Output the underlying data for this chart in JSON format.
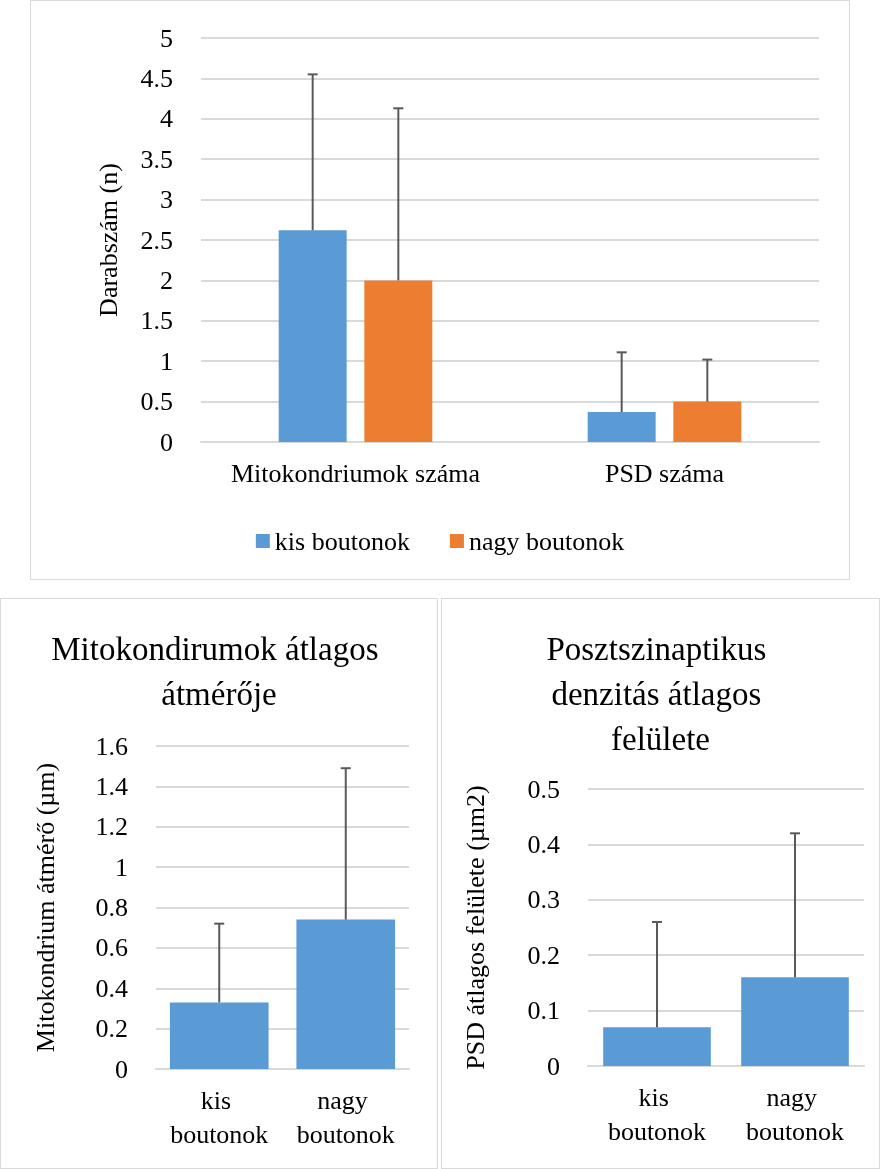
{
  "chart_data": [
    {
      "type": "bar",
      "ylabel": "Darabszám (n)",
      "categories": [
        "Mitokondriumok száma",
        "PSD száma"
      ],
      "series": [
        {
          "name": "kis boutonok",
          "color": "#5b9bd5",
          "values": [
            2.62,
            0.37
          ],
          "errors": [
            [
              2.62,
              4.55
            ],
            [
              0.37,
              1.11
            ]
          ]
        },
        {
          "name": "nagy boutonok",
          "color": "#ed7d31",
          "values": [
            2.0,
            0.5
          ],
          "errors": [
            [
              2.0,
              4.13
            ],
            [
              0.5,
              1.02
            ]
          ]
        }
      ],
      "ylim": [
        0,
        5
      ],
      "yticks": [
        0,
        0.5,
        1,
        1.5,
        2,
        2.5,
        3,
        3.5,
        4,
        4.5,
        5
      ],
      "grid": "y",
      "legend": "bottom"
    },
    {
      "type": "bar",
      "title": "Mitokondirumok átlagos átmérője",
      "ylabel": "Mitokondrium átmérő (µm)",
      "categories": [
        "kis boutonok",
        "nagy boutonok"
      ],
      "series": [
        {
          "color": "#5b9bd5",
          "values": [
            0.33,
            0.74
          ],
          "errors": [
            [
              0.33,
              0.72
            ],
            [
              0.74,
              1.49
            ]
          ]
        }
      ],
      "ylim": [
        0,
        1.6
      ],
      "yticks": [
        0,
        0.2,
        0.4,
        0.6,
        0.8,
        1,
        1.2,
        1.4,
        1.6
      ],
      "grid": "y"
    },
    {
      "type": "bar",
      "title": "Posztszinaptikus denzitás átlagos felülete",
      "ylabel": "PSD átlagos felülete (µm2)",
      "categories": [
        "kis boutonok",
        "nagy boutonok"
      ],
      "series": [
        {
          "color": "#5b9bd5",
          "values": [
            0.07,
            0.16
          ],
          "errors": [
            [
              0.07,
              0.26
            ],
            [
              0.16,
              0.42
            ]
          ]
        }
      ],
      "ylim": [
        0,
        0.5
      ],
      "yticks": [
        0,
        0.1,
        0.2,
        0.3,
        0.4,
        0.5
      ],
      "grid": "y"
    }
  ]
}
